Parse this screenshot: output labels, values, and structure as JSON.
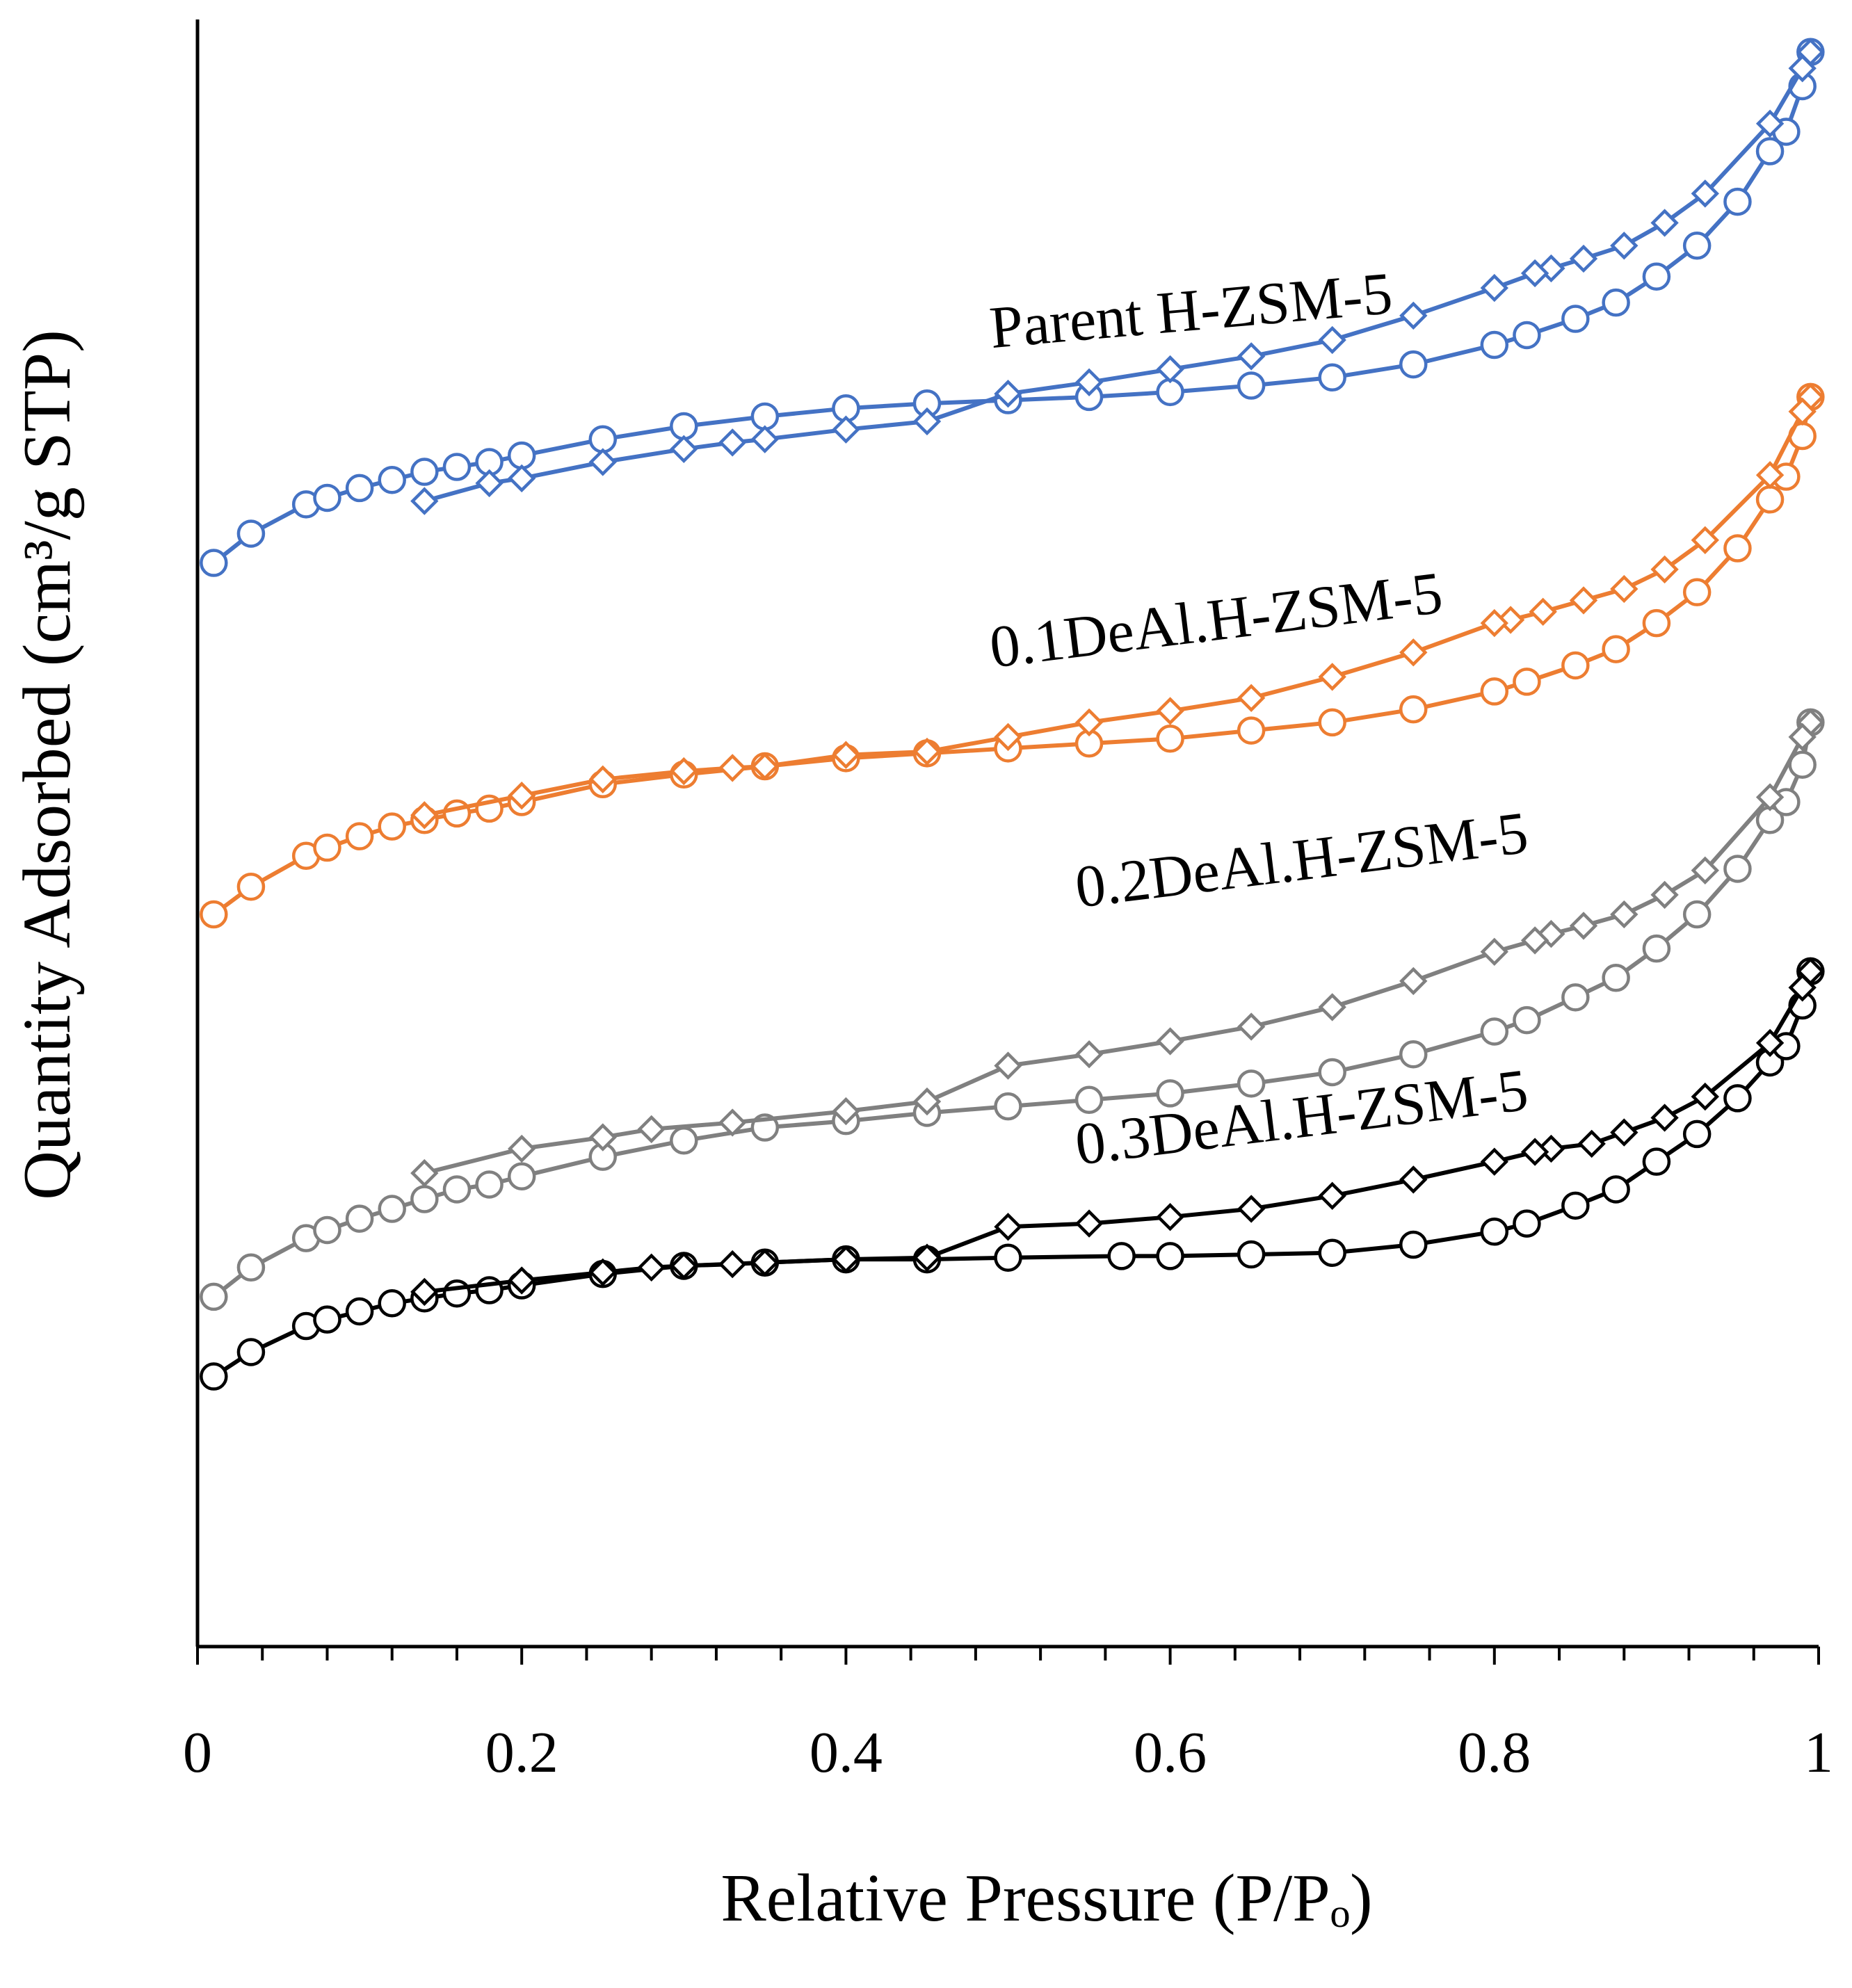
{
  "chart_data": {
    "type": "line",
    "title": "",
    "xlabel": "Relative Pressure (P/Pₒ)",
    "ylabel": "Quantity Adsorbed (cm³/g STP)",
    "xlim": [
      0,
      1
    ],
    "ylim": [
      0,
      100
    ],
    "x_ticks": [
      0,
      0.2,
      0.4,
      0.6,
      0.8,
      1
    ],
    "x_tick_labels": [
      "0",
      "0.2",
      "0.4",
      "0.6",
      "0.8",
      "1"
    ],
    "y_ticks_shown": false,
    "grid": false,
    "legend": "none (inline series labels)",
    "series": [
      {
        "name": "Parent H-ZSM-5",
        "color": "#4472c4",
        "adsorption_marker": "circle",
        "desorption_marker": "diamond",
        "adsorption": {
          "x": [
            0.01,
            0.033,
            0.067,
            0.08,
            0.1,
            0.12,
            0.14,
            0.16,
            0.18,
            0.2,
            0.25,
            0.3,
            0.35,
            0.4,
            0.45,
            0.5,
            0.55,
            0.6,
            0.65,
            0.7,
            0.75,
            0.8,
            0.82,
            0.85,
            0.875,
            0.9,
            0.925,
            0.95,
            0.97,
            0.98,
            0.99,
            0.995
          ],
          "y": [
            66.6,
            68.4,
            70.2,
            70.6,
            71.2,
            71.7,
            72.2,
            72.5,
            72.8,
            73.2,
            74.2,
            75.0,
            75.6,
            76.1,
            76.4,
            76.6,
            76.8,
            77.1,
            77.5,
            78.0,
            78.8,
            80.0,
            80.6,
            81.6,
            82.6,
            84.2,
            86.1,
            88.8,
            91.9,
            93.1,
            95.9,
            98.0
          ]
        },
        "desorption": {
          "x": [
            0.995,
            0.99,
            0.97,
            0.93,
            0.905,
            0.88,
            0.855,
            0.835,
            0.825,
            0.8,
            0.75,
            0.7,
            0.65,
            0.6,
            0.55,
            0.5,
            0.45,
            0.4,
            0.35,
            0.33,
            0.3,
            0.25,
            0.2,
            0.18,
            0.14
          ],
          "y": [
            98.0,
            97.0,
            93.6,
            89.3,
            87.5,
            86.1,
            85.3,
            84.7,
            84.4,
            83.5,
            81.8,
            80.3,
            79.3,
            78.5,
            77.7,
            77.0,
            75.3,
            74.8,
            74.2,
            74.0,
            73.6,
            72.8,
            71.8,
            71.5,
            70.4
          ]
        }
      },
      {
        "name": "0.1DeAl.H-ZSM-5",
        "color": "#ed7d31",
        "adsorption_marker": "circle",
        "desorption_marker": "diamond",
        "adsorption": {
          "x": [
            0.01,
            0.033,
            0.067,
            0.08,
            0.1,
            0.12,
            0.14,
            0.16,
            0.18,
            0.2,
            0.25,
            0.3,
            0.35,
            0.4,
            0.45,
            0.5,
            0.55,
            0.6,
            0.65,
            0.7,
            0.75,
            0.8,
            0.82,
            0.85,
            0.875,
            0.9,
            0.925,
            0.95,
            0.97,
            0.98,
            0.99,
            0.995
          ],
          "y": [
            45.0,
            46.7,
            48.6,
            49.1,
            49.8,
            50.4,
            50.8,
            51.2,
            51.5,
            51.9,
            53.0,
            53.6,
            54.1,
            54.6,
            54.9,
            55.2,
            55.5,
            55.8,
            56.3,
            56.8,
            57.6,
            58.7,
            59.3,
            60.3,
            61.3,
            62.9,
            64.8,
            67.5,
            70.5,
            71.9,
            74.4,
            76.8
          ]
        },
        "desorption": {
          "x": [
            0.995,
            0.99,
            0.97,
            0.93,
            0.905,
            0.88,
            0.855,
            0.83,
            0.81,
            0.8,
            0.75,
            0.7,
            0.65,
            0.6,
            0.55,
            0.5,
            0.45,
            0.4,
            0.35,
            0.33,
            0.3,
            0.25,
            0.2,
            0.14
          ],
          "y": [
            76.8,
            75.9,
            72.0,
            68.0,
            66.2,
            65.0,
            64.3,
            63.6,
            63.1,
            62.9,
            61.1,
            59.6,
            58.3,
            57.5,
            56.8,
            55.9,
            55.0,
            54.8,
            54.1,
            54.0,
            53.8,
            53.3,
            52.3,
            51.1
          ]
        }
      },
      {
        "name": "0.2DeAl.H-ZSM-5",
        "color": "#808080",
        "adsorption_marker": "circle",
        "desorption_marker": "diamond",
        "adsorption": {
          "x": [
            0.01,
            0.033,
            0.067,
            0.08,
            0.1,
            0.12,
            0.14,
            0.16,
            0.18,
            0.2,
            0.25,
            0.3,
            0.35,
            0.4,
            0.45,
            0.5,
            0.55,
            0.6,
            0.65,
            0.7,
            0.75,
            0.8,
            0.82,
            0.85,
            0.875,
            0.9,
            0.925,
            0.95,
            0.97,
            0.98,
            0.99,
            0.995
          ],
          "y": [
            21.5,
            23.3,
            25.1,
            25.6,
            26.3,
            26.9,
            27.5,
            28.1,
            28.4,
            28.9,
            30.1,
            31.1,
            31.9,
            32.3,
            32.8,
            33.2,
            33.6,
            34.0,
            34.6,
            35.3,
            36.4,
            37.8,
            38.5,
            39.9,
            41.1,
            42.9,
            45.0,
            47.8,
            50.8,
            51.9,
            54.2,
            56.8
          ]
        },
        "desorption": {
          "x": [
            0.995,
            0.99,
            0.97,
            0.93,
            0.905,
            0.88,
            0.855,
            0.835,
            0.825,
            0.8,
            0.75,
            0.7,
            0.65,
            0.6,
            0.55,
            0.5,
            0.45,
            0.4,
            0.33,
            0.28,
            0.25,
            0.2,
            0.14
          ],
          "y": [
            56.8,
            55.9,
            52.2,
            47.7,
            46.2,
            45.0,
            44.3,
            43.8,
            43.4,
            42.7,
            40.9,
            39.3,
            38.1,
            37.2,
            36.4,
            35.7,
            33.5,
            32.9,
            32.2,
            31.8,
            31.3,
            30.6,
            29.1
          ]
        }
      },
      {
        "name": "0.3DeAl.H-ZSM-5",
        "color": "#000000",
        "adsorption_marker": "circle",
        "desorption_marker": "diamond",
        "adsorption": {
          "x": [
            0.01,
            0.033,
            0.067,
            0.08,
            0.1,
            0.12,
            0.14,
            0.16,
            0.18,
            0.2,
            0.25,
            0.3,
            0.35,
            0.4,
            0.45,
            0.5,
            0.57,
            0.6,
            0.65,
            0.7,
            0.75,
            0.8,
            0.82,
            0.85,
            0.875,
            0.9,
            0.925,
            0.95,
            0.97,
            0.98,
            0.99,
            0.995
          ],
          "y": [
            16.6,
            18.1,
            19.7,
            20.1,
            20.6,
            21.1,
            21.4,
            21.7,
            21.9,
            22.2,
            22.9,
            23.4,
            23.6,
            23.8,
            23.8,
            23.9,
            24.0,
            24.0,
            24.1,
            24.2,
            24.7,
            25.5,
            26.0,
            27.1,
            28.1,
            29.8,
            31.5,
            33.7,
            35.9,
            36.9,
            39.4,
            41.5
          ]
        },
        "desorption": {
          "x": [
            0.995,
            0.99,
            0.97,
            0.93,
            0.905,
            0.88,
            0.86,
            0.835,
            0.825,
            0.8,
            0.75,
            0.7,
            0.65,
            0.6,
            0.55,
            0.5,
            0.45,
            0.4,
            0.35,
            0.33,
            0.3,
            0.28,
            0.25,
            0.2,
            0.14
          ],
          "y": [
            41.5,
            40.5,
            37.1,
            33.8,
            32.5,
            31.6,
            30.9,
            30.6,
            30.4,
            29.8,
            28.7,
            27.7,
            26.9,
            26.4,
            26.0,
            25.8,
            23.9,
            23.8,
            23.6,
            23.5,
            23.4,
            23.3,
            23.0,
            22.5,
            21.8
          ]
        }
      }
    ]
  }
}
